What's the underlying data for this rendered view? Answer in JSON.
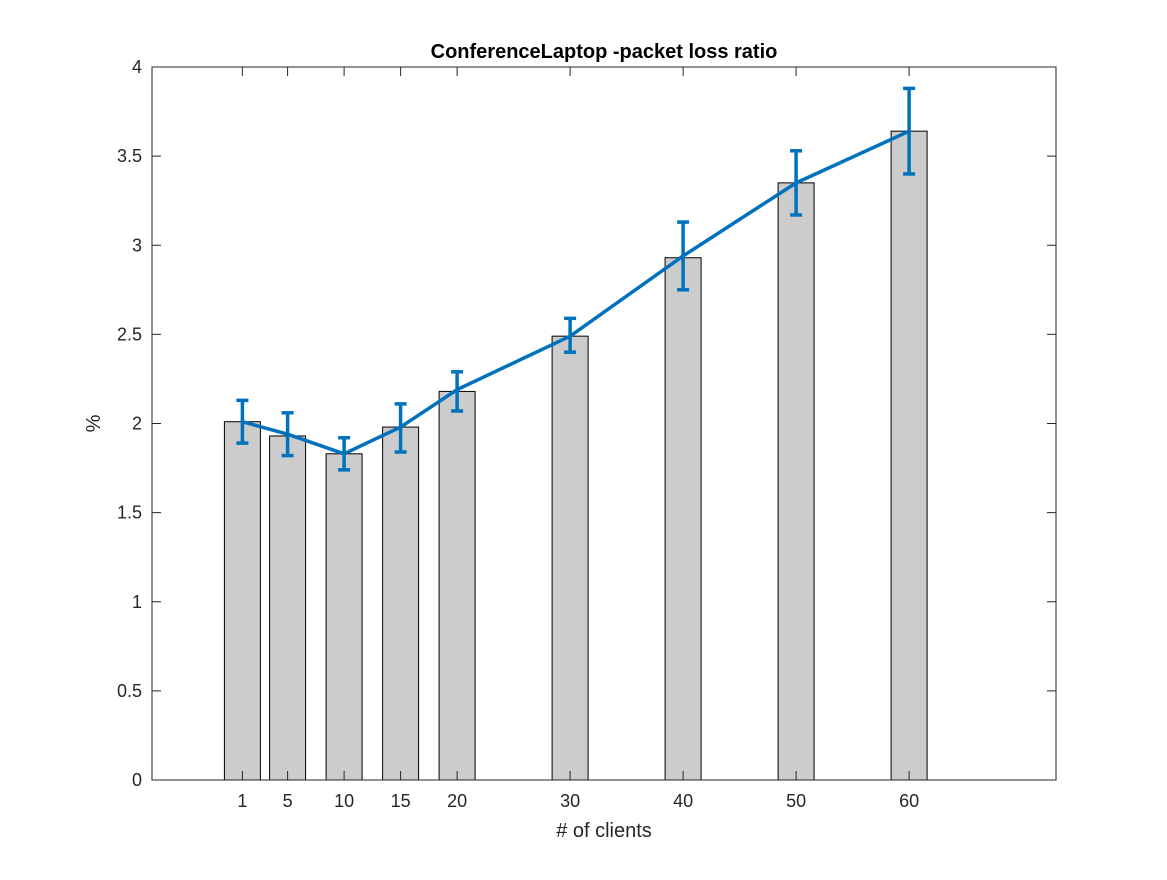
{
  "chart_data": {
    "type": "bar",
    "title": "ConferenceLaptop -packet loss ratio",
    "xlabel": "# of clients",
    "ylabel": "%",
    "x": [
      1,
      5,
      10,
      15,
      20,
      30,
      40,
      50,
      60
    ],
    "categories": [
      "1",
      "5",
      "10",
      "15",
      "20",
      "30",
      "40",
      "50",
      "60"
    ],
    "values": [
      2.01,
      1.93,
      1.83,
      1.98,
      2.18,
      2.49,
      2.93,
      3.35,
      3.64
    ],
    "line": {
      "values": [
        2.01,
        1.94,
        1.83,
        1.98,
        2.19,
        2.49,
        2.94,
        3.35,
        3.64
      ],
      "err_low": [
        1.89,
        1.82,
        1.74,
        1.84,
        2.07,
        2.4,
        2.75,
        3.17,
        3.4
      ],
      "err_high": [
        2.13,
        2.06,
        1.92,
        2.11,
        2.29,
        2.59,
        3.13,
        3.53,
        3.88
      ],
      "color": "#0072BD"
    },
    "bar_color": "#cccccc",
    "bar_edge_color": "#000000",
    "xlim": [
      -7,
      73
    ],
    "ylim": [
      0,
      4
    ],
    "yticks": [
      0,
      0.5,
      1,
      1.5,
      2,
      2.5,
      3,
      3.5,
      4
    ],
    "ytick_labels": [
      "0",
      "0.5",
      "1",
      "1.5",
      "2",
      "2.5",
      "3",
      "3.5",
      "4"
    ],
    "grid": false
  }
}
